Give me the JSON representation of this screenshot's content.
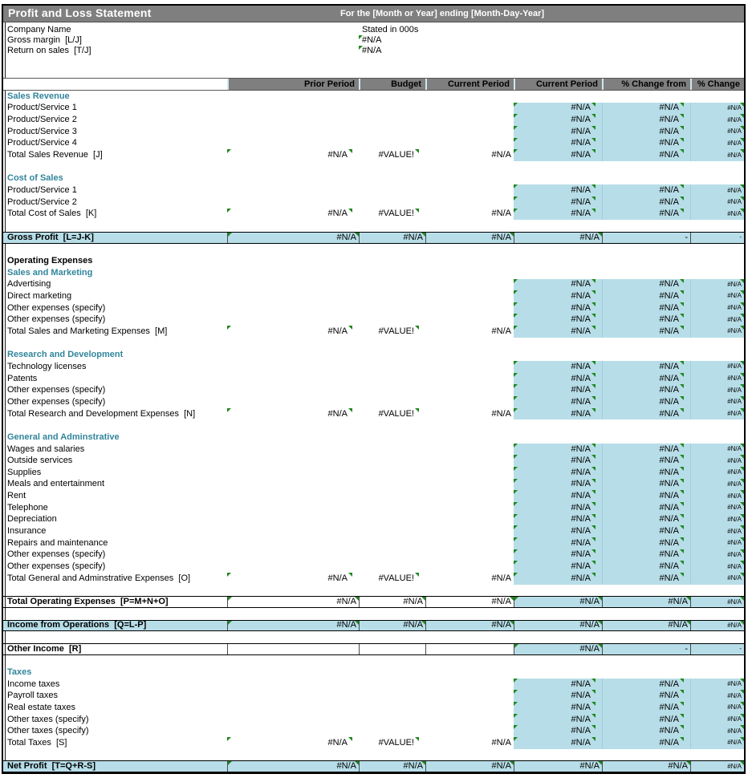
{
  "titlebar": {
    "title": "Profit and Loss Statement",
    "subtitle": "For the [Month or Year] ending [Month-Day-Year]"
  },
  "info_rows": [
    {
      "label": "Company Name",
      "value": "Stated in 000s",
      "error_indicator": false
    },
    {
      "label": "Gross margin  [L/J]",
      "value": "#N/A",
      "error_indicator": true
    },
    {
      "label": "Return on sales  [T/J]",
      "value": "#N/A",
      "error_indicator": true
    }
  ],
  "column_headers": [
    "",
    "Prior Period",
    "Budget",
    "Current Period",
    "Current Period",
    "% Change from",
    "% Change"
  ],
  "colors": {
    "title_gray": "#7f7f7f",
    "header_gray": "#7f7f7f",
    "cell_cyan": "#b7dee8",
    "section_teal": "#31859b",
    "indicator_green": "#21871f"
  },
  "rows": [
    {
      "type": "section",
      "label": "Sales Revenue"
    },
    {
      "type": "item",
      "label": "Product/Service 1",
      "v5": "#N/A",
      "v6": "#N/A",
      "v7": "#N/A"
    },
    {
      "type": "item",
      "label": "Product/Service 2",
      "v5": "#N/A",
      "v6": "#N/A",
      "v7": "#N/A"
    },
    {
      "type": "item",
      "label": "Product/Service 3",
      "v5": "#N/A",
      "v6": "#N/A",
      "v7": "#N/A"
    },
    {
      "type": "item",
      "label": "Product/Service 4",
      "v5": "#N/A",
      "v6": "#N/A",
      "v7": "#N/A"
    },
    {
      "type": "total",
      "label": "Total Sales Revenue  [J]",
      "v2": "#N/A",
      "v3": "#VALUE!",
      "v4": "#N/A",
      "v5": "#N/A",
      "v6": "#N/A",
      "v7": "#N/A"
    },
    {
      "type": "blank"
    },
    {
      "type": "section",
      "label": "Cost of Sales"
    },
    {
      "type": "item",
      "label": "Product/Service 1",
      "v5": "#N/A",
      "v6": "#N/A",
      "v7": "#N/A"
    },
    {
      "type": "item",
      "label": "Product/Service 2",
      "v5": "#N/A",
      "v6": "#N/A",
      "v7": "#N/A"
    },
    {
      "type": "total",
      "label": "Total Cost of Sales  [K]",
      "v2": "#N/A",
      "v3": "#VALUE!",
      "v4": "#N/A",
      "v5": "#N/A",
      "v6": "#N/A",
      "v7": "#N/A"
    },
    {
      "type": "blank"
    },
    {
      "type": "band",
      "variant": "cyan",
      "label": "Gross Profit  [L=J-K]",
      "v2": "#N/A",
      "v3": "#N/A",
      "v4": "#N/A",
      "v5": "#N/A",
      "v6": "-",
      "v7": "-"
    },
    {
      "type": "blank"
    },
    {
      "type": "section",
      "variant": "black",
      "label": "Operating Expenses"
    },
    {
      "type": "section",
      "label": "Sales and Marketing"
    },
    {
      "type": "item",
      "label": "Advertising",
      "v5": "#N/A",
      "v6": "#N/A",
      "v7": "#N/A"
    },
    {
      "type": "item",
      "label": "Direct marketing",
      "v5": "#N/A",
      "v6": "#N/A",
      "v7": "#N/A"
    },
    {
      "type": "item",
      "label": "Other expenses (specify)",
      "v5": "#N/A",
      "v6": "#N/A",
      "v7": "#N/A"
    },
    {
      "type": "item",
      "label": "Other expenses (specify)",
      "v5": "#N/A",
      "v6": "#N/A",
      "v7": "#N/A"
    },
    {
      "type": "total",
      "label": "Total Sales and Marketing Expenses  [M]",
      "v2": "#N/A",
      "v3": "#VALUE!",
      "v4": "#N/A",
      "v5": "#N/A",
      "v6": "#N/A",
      "v7": "#N/A"
    },
    {
      "type": "blank"
    },
    {
      "type": "section",
      "label": "Research and Development"
    },
    {
      "type": "item",
      "label": "Technology licenses",
      "v5": "#N/A",
      "v6": "#N/A",
      "v7": "#N/A"
    },
    {
      "type": "item",
      "label": "Patents",
      "v5": "#N/A",
      "v6": "#N/A",
      "v7": "#N/A"
    },
    {
      "type": "item",
      "label": "Other expenses (specify)",
      "v5": "#N/A",
      "v6": "#N/A",
      "v7": "#N/A"
    },
    {
      "type": "item",
      "label": "Other expenses (specify)",
      "v5": "#N/A",
      "v6": "#N/A",
      "v7": "#N/A"
    },
    {
      "type": "total",
      "label": "Total Research and Development Expenses  [N]",
      "v2": "#N/A",
      "v3": "#VALUE!",
      "v4": "#N/A",
      "v5": "#N/A",
      "v6": "#N/A",
      "v7": "#N/A"
    },
    {
      "type": "blank"
    },
    {
      "type": "section",
      "label": "General and Adminstrative"
    },
    {
      "type": "item",
      "label": "Wages and salaries",
      "v5": "#N/A",
      "v6": "#N/A",
      "v7": "#N/A"
    },
    {
      "type": "item",
      "label": "Outside services",
      "v5": "#N/A",
      "v6": "#N/A",
      "v7": "#N/A"
    },
    {
      "type": "item",
      "label": "Supplies",
      "v5": "#N/A",
      "v6": "#N/A",
      "v7": "#N/A"
    },
    {
      "type": "item",
      "label": "Meals and entertainment",
      "v5": "#N/A",
      "v6": "#N/A",
      "v7": "#N/A"
    },
    {
      "type": "item",
      "label": "Rent",
      "v5": "#N/A",
      "v6": "#N/A",
      "v7": "#N/A"
    },
    {
      "type": "item",
      "label": "Telephone",
      "v5": "#N/A",
      "v6": "#N/A",
      "v7": "#N/A"
    },
    {
      "type": "item",
      "label": "Depreciation",
      "v5": "#N/A",
      "v6": "#N/A",
      "v7": "#N/A"
    },
    {
      "type": "item",
      "label": "Insurance",
      "v5": "#N/A",
      "v6": "#N/A",
      "v7": "#N/A"
    },
    {
      "type": "item",
      "label": "Repairs and maintenance",
      "v5": "#N/A",
      "v6": "#N/A",
      "v7": "#N/A"
    },
    {
      "type": "item",
      "label": "Other expenses (specify)",
      "v5": "#N/A",
      "v6": "#N/A",
      "v7": "#N/A"
    },
    {
      "type": "item",
      "label": "Other expenses (specify)",
      "v5": "#N/A",
      "v6": "#N/A",
      "v7": "#N/A"
    },
    {
      "type": "total",
      "label": "Total General and Adminstrative Expenses  [O]",
      "v2": "#N/A",
      "v3": "#VALUE!",
      "v4": "#N/A",
      "v5": "#N/A",
      "v6": "#N/A",
      "v7": "#N/A"
    },
    {
      "type": "blank"
    },
    {
      "type": "band",
      "variant": "white",
      "label": "Total Operating Expenses  [P=M+N+O]",
      "v2": "#N/A",
      "v3": "#N/A",
      "v4": "#N/A",
      "v5": "#N/A",
      "v6": "#N/A",
      "v7": "#N/A"
    },
    {
      "type": "blank"
    },
    {
      "type": "band",
      "variant": "cyan",
      "label": "Income from Operations  [Q=L-P]",
      "v2": "#N/A",
      "v3": "#N/A",
      "v4": "#N/A",
      "v5": "#N/A",
      "v6": "#N/A",
      "v7": "#N/A"
    },
    {
      "type": "blank"
    },
    {
      "type": "band",
      "variant": "white",
      "label": "Other Income  [R]",
      "v2": "",
      "v3": "",
      "v4": "",
      "v5": "#N/A",
      "v6": "-",
      "v7": "-"
    },
    {
      "type": "blank"
    },
    {
      "type": "section",
      "label": "Taxes"
    },
    {
      "type": "item",
      "label": "Income taxes",
      "v5": "#N/A",
      "v6": "#N/A",
      "v7": "#N/A"
    },
    {
      "type": "item",
      "label": "Payroll taxes",
      "v5": "#N/A",
      "v6": "#N/A",
      "v7": "#N/A"
    },
    {
      "type": "item",
      "label": "Real estate taxes",
      "v5": "#N/A",
      "v6": "#N/A",
      "v7": "#N/A"
    },
    {
      "type": "item",
      "label": "Other taxes (specify)",
      "v5": "#N/A",
      "v6": "#N/A",
      "v7": "#N/A"
    },
    {
      "type": "item",
      "label": "Other taxes (specify)",
      "v5": "#N/A",
      "v6": "#N/A",
      "v7": "#N/A"
    },
    {
      "type": "total",
      "label": "Total Taxes  [S]",
      "v2": "#N/A",
      "v3": "#VALUE!",
      "v4": "#N/A",
      "v5": "#N/A",
      "v6": "#N/A",
      "v7": "#N/A"
    },
    {
      "type": "blank"
    },
    {
      "type": "band",
      "variant": "cyan",
      "label": "Net Profit  [T=Q+R-S]",
      "v2": "#N/A",
      "v3": "#N/A",
      "v4": "#N/A",
      "v5": "#N/A",
      "v6": "#N/A",
      "v7": "#N/A"
    }
  ]
}
